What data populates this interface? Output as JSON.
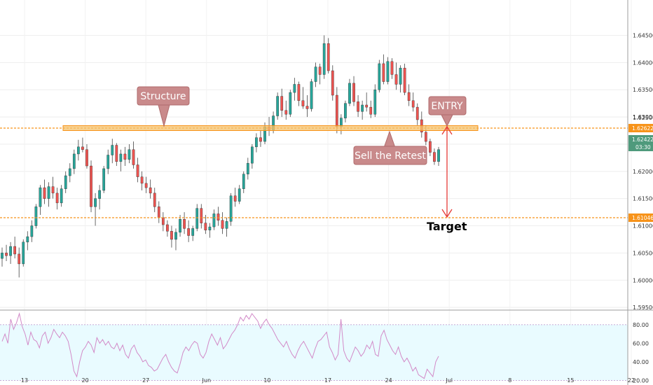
{
  "chart_data": [
    {
      "type": "candlestick",
      "ylim": [
        1.5945,
        1.6515
      ],
      "y_ticks": [
        "1.64500",
        "1.64000",
        "1.63500",
        "1.63000",
        "1.62500",
        "1.62000",
        "1.61500",
        "1.61000",
        "1.60500",
        "1.60000",
        "1.59500"
      ],
      "x_ticks": [
        "13",
        "20",
        "27",
        "Jun",
        "10",
        "17",
        "24",
        "Jul",
        "8",
        "15",
        "22"
      ],
      "candles": [
        [
          1.604,
          1.606,
          1.6025,
          1.605
        ],
        [
          1.605,
          1.6065,
          1.6035,
          1.6045
        ],
        [
          1.6045,
          1.607,
          1.603,
          1.6062
        ],
        [
          1.6062,
          1.608,
          1.604,
          1.6048
        ],
        [
          1.6048,
          1.606,
          1.6005,
          1.603
        ],
        [
          1.603,
          1.6075,
          1.6025,
          1.607
        ],
        [
          1.607,
          1.609,
          1.6055,
          1.608
        ],
        [
          1.608,
          1.611,
          1.607,
          1.61
        ],
        [
          1.61,
          1.614,
          1.6095,
          1.6135
        ],
        [
          1.6135,
          1.6175,
          1.612,
          1.617
        ],
        [
          1.617,
          1.6185,
          1.614,
          1.615
        ],
        [
          1.615,
          1.618,
          1.6135,
          1.6172
        ],
        [
          1.6172,
          1.619,
          1.615,
          1.616
        ],
        [
          1.616,
          1.617,
          1.613,
          1.6142
        ],
        [
          1.6142,
          1.6175,
          1.6135,
          1.6168
        ],
        [
          1.6168,
          1.62,
          1.616,
          1.6192
        ],
        [
          1.6192,
          1.6215,
          1.618,
          1.6205
        ],
        [
          1.6205,
          1.624,
          1.6195,
          1.6232
        ],
        [
          1.6232,
          1.6258,
          1.622,
          1.6245
        ],
        [
          1.6245,
          1.6262,
          1.6235,
          1.624
        ],
        [
          1.624,
          1.625,
          1.6205,
          1.621
        ],
        [
          1.621,
          1.622,
          1.6125,
          1.6135
        ],
        [
          1.6135,
          1.616,
          1.61,
          1.615
        ],
        [
          1.615,
          1.6175,
          1.613,
          1.6165
        ],
        [
          1.6165,
          1.621,
          1.616,
          1.6205
        ],
        [
          1.6205,
          1.624,
          1.6195,
          1.623
        ],
        [
          1.623,
          1.626,
          1.6215,
          1.6248
        ],
        [
          1.6248,
          1.6252,
          1.621,
          1.6218
        ],
        [
          1.6218,
          1.624,
          1.62,
          1.6232
        ],
        [
          1.6232,
          1.6245,
          1.621,
          1.6222
        ],
        [
          1.6222,
          1.625,
          1.6215,
          1.624
        ],
        [
          1.624,
          1.6255,
          1.6205,
          1.6212
        ],
        [
          1.6212,
          1.6225,
          1.618,
          1.619
        ],
        [
          1.619,
          1.62,
          1.6165,
          1.6178
        ],
        [
          1.6178,
          1.619,
          1.616,
          1.617
        ],
        [
          1.617,
          1.6185,
          1.615,
          1.616
        ],
        [
          1.616,
          1.617,
          1.6125,
          1.6135
        ],
        [
          1.6135,
          1.6145,
          1.6105,
          1.6115
        ],
        [
          1.6115,
          1.6125,
          1.609,
          1.6102
        ],
        [
          1.6102,
          1.611,
          1.608,
          1.609
        ],
        [
          1.609,
          1.61,
          1.606,
          1.6075
        ],
        [
          1.6075,
          1.6095,
          1.6055,
          1.6088
        ],
        [
          1.6088,
          1.612,
          1.608,
          1.6112
        ],
        [
          1.6112,
          1.6125,
          1.6085,
          1.6095
        ],
        [
          1.6095,
          1.611,
          1.607,
          1.6082
        ],
        [
          1.6082,
          1.61,
          1.6072,
          1.6095
        ],
        [
          1.6095,
          1.614,
          1.609,
          1.6132
        ],
        [
          1.6132,
          1.614,
          1.6095,
          1.6105
        ],
        [
          1.6105,
          1.612,
          1.6085,
          1.6092
        ],
        [
          1.6092,
          1.6105,
          1.6078,
          1.6098
        ],
        [
          1.6098,
          1.613,
          1.6092,
          1.6122
        ],
        [
          1.6122,
          1.6135,
          1.61,
          1.611
        ],
        [
          1.611,
          1.6125,
          1.6085,
          1.6095
        ],
        [
          1.6095,
          1.6115,
          1.608,
          1.6108
        ],
        [
          1.6108,
          1.616,
          1.61,
          1.6155
        ],
        [
          1.6155,
          1.617,
          1.6135,
          1.6145
        ],
        [
          1.6145,
          1.6175,
          1.614,
          1.6168
        ],
        [
          1.6168,
          1.62,
          1.616,
          1.6195
        ],
        [
          1.6195,
          1.6225,
          1.6185,
          1.6215
        ],
        [
          1.6215,
          1.625,
          1.6205,
          1.6245
        ],
        [
          1.6245,
          1.627,
          1.6235,
          1.6262
        ],
        [
          1.6262,
          1.6275,
          1.6245,
          1.6255
        ],
        [
          1.6255,
          1.629,
          1.625,
          1.6282
        ],
        [
          1.6282,
          1.63,
          1.6265,
          1.6275
        ],
        [
          1.6275,
          1.631,
          1.627,
          1.6302
        ],
        [
          1.6302,
          1.6345,
          1.6295,
          1.6338
        ],
        [
          1.6338,
          1.6352,
          1.63,
          1.6312
        ],
        [
          1.6312,
          1.633,
          1.6295,
          1.6305
        ],
        [
          1.6305,
          1.635,
          1.63,
          1.6345
        ],
        [
          1.6345,
          1.6372,
          1.633,
          1.636
        ],
        [
          1.636,
          1.6365,
          1.632,
          1.633
        ],
        [
          1.633,
          1.6355,
          1.6315,
          1.632
        ],
        [
          1.632,
          1.634,
          1.63,
          1.6315
        ],
        [
          1.6315,
          1.637,
          1.631,
          1.6365
        ],
        [
          1.6365,
          1.64,
          1.6355,
          1.6392
        ],
        [
          1.6392,
          1.6398,
          1.636,
          1.6378
        ],
        [
          1.6378,
          1.645,
          1.637,
          1.6435
        ],
        [
          1.6435,
          1.6445,
          1.638,
          1.6385
        ],
        [
          1.6385,
          1.6395,
          1.633,
          1.634
        ],
        [
          1.634,
          1.6355,
          1.627,
          1.6282
        ],
        [
          1.6282,
          1.6305,
          1.6268,
          1.6298
        ],
        [
          1.6298,
          1.633,
          1.629,
          1.6325
        ],
        [
          1.6325,
          1.637,
          1.632,
          1.6362
        ],
        [
          1.6362,
          1.6375,
          1.632,
          1.6328
        ],
        [
          1.6328,
          1.634,
          1.63,
          1.631
        ],
        [
          1.631,
          1.633,
          1.6295,
          1.6322
        ],
        [
          1.6322,
          1.6345,
          1.631,
          1.6318
        ],
        [
          1.6318,
          1.633,
          1.6298,
          1.6305
        ],
        [
          1.6305,
          1.636,
          1.63,
          1.635
        ],
        [
          1.635,
          1.6405,
          1.6345,
          1.6398
        ],
        [
          1.6398,
          1.6415,
          1.636,
          1.6365
        ],
        [
          1.6365,
          1.641,
          1.636,
          1.6402
        ],
        [
          1.6402,
          1.6408,
          1.637,
          1.6378
        ],
        [
          1.6378,
          1.64,
          1.635,
          1.636
        ],
        [
          1.636,
          1.6395,
          1.6345,
          1.639
        ],
        [
          1.639,
          1.6398,
          1.634,
          1.6345
        ],
        [
          1.6345,
          1.636,
          1.632,
          1.633
        ],
        [
          1.633,
          1.6345,
          1.631,
          1.6318
        ],
        [
          1.6318,
          1.6325,
          1.6285,
          1.6295
        ],
        [
          1.6295,
          1.631,
          1.6262,
          1.6272
        ],
        [
          1.6272,
          1.6285,
          1.6248,
          1.6255
        ],
        [
          1.6255,
          1.626,
          1.6228,
          1.6235
        ],
        [
          1.6235,
          1.6242,
          1.6212,
          1.6218
        ],
        [
          1.6218,
          1.6245,
          1.621,
          1.624
        ]
      ]
    },
    {
      "type": "line",
      "ylim": [
        15,
        95
      ],
      "y_ticks": [
        "80.00",
        "60.00",
        "40.00",
        "20.00"
      ],
      "band": [
        20,
        80
      ],
      "values": [
        62,
        70,
        60,
        86,
        75,
        82,
        92,
        78,
        70,
        58,
        72,
        64,
        62,
        55,
        68,
        72,
        60,
        66,
        75,
        70,
        66,
        72,
        68,
        62,
        48,
        30,
        24,
        40,
        52,
        56,
        62,
        58,
        50,
        66,
        60,
        64,
        58,
        62,
        56,
        54,
        60,
        52,
        58,
        48,
        44,
        54,
        58,
        50,
        46,
        40,
        42,
        36,
        34,
        30,
        32,
        38,
        44,
        48,
        40,
        34,
        30,
        28,
        38,
        50,
        56,
        52,
        58,
        62,
        60,
        48,
        44,
        50,
        62,
        70,
        64,
        58,
        66,
        54,
        58,
        64,
        70,
        74,
        80,
        88,
        84,
        90,
        86,
        92,
        88,
        84,
        76,
        82,
        86,
        80,
        76,
        70,
        64,
        60,
        56,
        62,
        54,
        48,
        44,
        52,
        58,
        62,
        56,
        50,
        44,
        54,
        62,
        64,
        68,
        72,
        56,
        50,
        42,
        48,
        86,
        52,
        44,
        40,
        48,
        56,
        52,
        46,
        50,
        58,
        54,
        62,
        48,
        46,
        68,
        74,
        64,
        58,
        52,
        48,
        56,
        46,
        40,
        44,
        38,
        30,
        34,
        26,
        24,
        22,
        32,
        28,
        24,
        40,
        46
      ]
    }
  ],
  "annotations": {
    "structure_label": "Structure",
    "entry_label": "ENTRY",
    "sell_retest_label": "Sell the Retest",
    "target_label": "Target"
  },
  "price_tags": {
    "structure_level": "1.62622",
    "current_price": "1.62422",
    "countdown": "03:30",
    "target_level": "1.61046",
    "partial_hidden": "1.62500"
  },
  "colors": {
    "bull": "#26a69a",
    "bear": "#ef5350",
    "wick": "#333333",
    "orange": "#f7931a",
    "zone_fill": "#f6c26b",
    "callout": "#c98a8b",
    "arrow": "#e53935",
    "rsi_line": "#d28ac8",
    "rsi_band": "#e9fbff",
    "price_tag": "#4f9a7c"
  }
}
